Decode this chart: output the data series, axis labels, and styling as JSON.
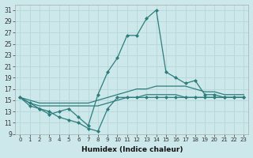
{
  "xlabel": "Humidex (Indice chaleur)",
  "ylabel": "",
  "bg_color": "#cce8ea",
  "grid_color": "#b8d8da",
  "line_color": "#2e7d7d",
  "xlim": [
    -0.5,
    23.5
  ],
  "ylim": [
    9,
    32
  ],
  "yticks": [
    9,
    11,
    13,
    15,
    17,
    19,
    21,
    23,
    25,
    27,
    29,
    31
  ],
  "xticks": [
    0,
    1,
    2,
    3,
    4,
    5,
    6,
    7,
    8,
    9,
    10,
    11,
    12,
    13,
    14,
    15,
    16,
    17,
    18,
    19,
    20,
    21,
    22,
    23
  ],
  "lines": [
    {
      "x": [
        0,
        1,
        2,
        3,
        4,
        5,
        6,
        7,
        8,
        9,
        10,
        11,
        12,
        13,
        14,
        15,
        16,
        17,
        18,
        19,
        20,
        21,
        22,
        23
      ],
      "y": [
        15.5,
        14.5,
        13.5,
        12.5,
        13.0,
        13.5,
        12.0,
        10.5,
        16.0,
        20.0,
        22.5,
        26.5,
        26.5,
        29.5,
        31.0,
        20.0,
        19.0,
        18.0,
        18.5,
        16.0,
        16.0,
        15.5,
        15.5,
        15.5
      ],
      "marker": "D",
      "markersize": 2.0,
      "lw": 0.9
    },
    {
      "x": [
        0,
        1,
        2,
        3,
        4,
        5,
        6,
        7,
        8,
        9,
        10,
        11,
        12,
        13,
        14,
        15,
        16,
        17,
        18,
        19,
        20,
        21,
        22,
        23
      ],
      "y": [
        15.5,
        15.0,
        14.5,
        14.5,
        14.5,
        14.5,
        14.5,
        14.5,
        15.0,
        15.5,
        16.0,
        16.5,
        17.0,
        17.0,
        17.5,
        17.5,
        17.5,
        17.5,
        17.0,
        16.5,
        16.5,
        16.0,
        16.0,
        16.0
      ],
      "marker": null,
      "markersize": 0,
      "lw": 0.9
    },
    {
      "x": [
        0,
        1,
        2,
        3,
        4,
        5,
        6,
        7,
        8,
        9,
        10,
        11,
        12,
        13,
        14,
        15,
        16,
        17,
        18,
        19,
        20,
        21,
        22,
        23
      ],
      "y": [
        15.5,
        14.5,
        14.0,
        14.0,
        14.0,
        14.0,
        14.0,
        14.0,
        14.0,
        14.5,
        15.0,
        15.5,
        15.5,
        16.0,
        16.0,
        16.0,
        16.0,
        15.5,
        15.5,
        15.5,
        15.5,
        15.5,
        15.5,
        15.5
      ],
      "marker": null,
      "markersize": 0,
      "lw": 0.9
    },
    {
      "x": [
        0,
        1,
        2,
        3,
        4,
        5,
        6,
        7,
        8,
        9,
        10,
        11,
        12,
        13,
        14,
        15,
        16,
        17,
        18,
        19,
        20,
        21,
        22,
        23
      ],
      "y": [
        15.5,
        14.0,
        13.5,
        13.0,
        12.0,
        11.5,
        11.0,
        10.0,
        9.5,
        13.5,
        15.5,
        15.5,
        15.5,
        15.5,
        15.5,
        15.5,
        15.5,
        15.5,
        15.5,
        15.5,
        15.5,
        15.5,
        15.5,
        15.5
      ],
      "marker": "D",
      "markersize": 2.0,
      "lw": 0.9
    }
  ]
}
